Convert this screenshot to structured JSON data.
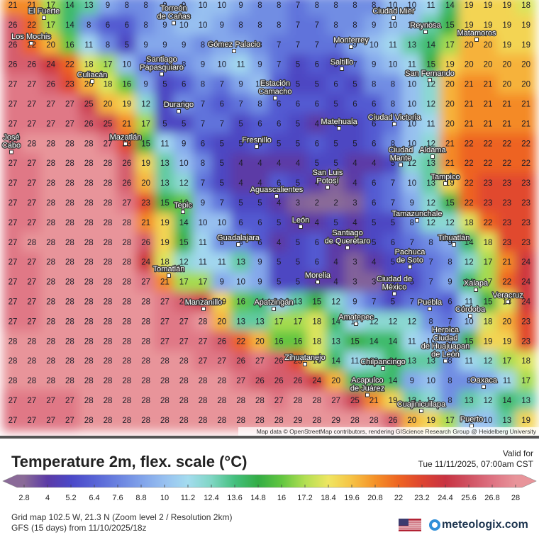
{
  "map": {
    "grid": {
      "rows": [
        [
          21,
          21,
          17,
          14,
          13,
          9,
          8,
          8,
          9,
          9,
          10,
          10,
          9,
          8,
          8,
          7,
          8,
          8,
          8,
          8,
          10,
          10,
          11,
          14,
          19,
          19,
          19,
          18
        ],
        [
          26,
          22,
          17,
          14,
          8,
          6,
          6,
          8,
          9,
          10,
          10,
          9,
          8,
          8,
          8,
          7,
          7,
          8,
          8,
          9,
          10,
          10,
          13,
          15,
          19,
          19,
          19,
          19
        ],
        [
          26,
          22,
          20,
          16,
          11,
          8,
          5,
          9,
          9,
          9,
          8,
          9,
          9,
          8,
          7,
          7,
          7,
          7,
          9,
          10,
          11,
          13,
          14,
          17,
          20,
          20,
          19,
          19
        ],
        [
          26,
          26,
          24,
          22,
          18,
          17,
          10,
          7,
          7,
          8,
          9,
          10,
          11,
          9,
          7,
          5,
          6,
          5,
          7,
          9,
          10,
          11,
          15,
          19,
          20,
          20,
          20,
          20
        ],
        [
          27,
          27,
          26,
          23,
          20,
          18,
          16,
          9,
          5,
          6,
          8,
          7,
          9,
          10,
          6,
          5,
          5,
          6,
          5,
          8,
          8,
          10,
          12,
          20,
          21,
          21,
          20,
          20
        ],
        [
          27,
          27,
          27,
          27,
          25,
          20,
          19,
          12,
          5,
          8,
          7,
          6,
          7,
          8,
          6,
          6,
          6,
          5,
          6,
          6,
          8,
          10,
          12,
          20,
          21,
          21,
          21,
          21
        ],
        [
          27,
          27,
          27,
          27,
          26,
          25,
          21,
          17,
          5,
          5,
          7,
          7,
          5,
          6,
          6,
          5,
          4,
          5,
          5,
          6,
          7,
          10,
          11,
          20,
          21,
          21,
          21,
          21
        ],
        [
          27,
          28,
          28,
          28,
          28,
          27,
          23,
          15,
          11,
          9,
          6,
          5,
          5,
          6,
          5,
          5,
          6,
          5,
          5,
          6,
          8,
          10,
          12,
          21,
          22,
          22,
          22,
          22
        ],
        [
          27,
          27,
          28,
          28,
          28,
          28,
          26,
          19,
          13,
          10,
          8,
          5,
          4,
          4,
          4,
          4,
          5,
          5,
          4,
          4,
          5,
          12,
          13,
          21,
          22,
          22,
          22,
          22
        ],
        [
          27,
          27,
          28,
          28,
          28,
          28,
          26,
          20,
          13,
          12,
          7,
          5,
          4,
          4,
          6,
          5,
          4,
          3,
          4,
          6,
          7,
          10,
          13,
          19,
          22,
          23,
          23,
          23
        ],
        [
          27,
          27,
          28,
          28,
          28,
          28,
          27,
          23,
          15,
          16,
          9,
          7,
          5,
          5,
          4,
          3,
          2,
          2,
          3,
          6,
          7,
          9,
          12,
          15,
          22,
          23,
          23,
          23
        ],
        [
          27,
          27,
          28,
          28,
          28,
          28,
          28,
          21,
          19,
          14,
          10,
          10,
          6,
          6,
          5,
          4,
          4,
          5,
          4,
          5,
          5,
          8,
          12,
          12,
          18,
          22,
          23,
          23
        ],
        [
          27,
          28,
          28,
          28,
          28,
          28,
          28,
          26,
          19,
          15,
          11,
          8,
          8,
          6,
          4,
          5,
          6,
          4,
          4,
          5,
          6,
          7,
          8,
          9,
          14,
          18,
          23,
          23
        ],
        [
          27,
          27,
          28,
          28,
          28,
          28,
          28,
          24,
          18,
          12,
          11,
          11,
          13,
          9,
          5,
          5,
          6,
          4,
          3,
          4,
          5,
          6,
          7,
          8,
          12,
          17,
          21,
          24
        ],
        [
          27,
          27,
          28,
          28,
          28,
          28,
          28,
          27,
          21,
          17,
          17,
          9,
          10,
          9,
          5,
          5,
          4,
          4,
          3,
          3,
          5,
          5,
          7,
          9,
          14,
          17,
          22,
          24
        ],
        [
          27,
          27,
          28,
          28,
          28,
          28,
          28,
          28,
          27,
          26,
          25,
          19,
          16,
          14,
          10,
          13,
          15,
          12,
          9,
          7,
          5,
          7,
          7,
          6,
          11,
          15,
          18,
          24
        ],
        [
          27,
          27,
          28,
          28,
          28,
          28,
          28,
          28,
          27,
          27,
          28,
          20,
          13,
          13,
          17,
          17,
          18,
          14,
          11,
          12,
          12,
          12,
          8,
          7,
          10,
          18,
          20,
          23
        ],
        [
          28,
          28,
          28,
          28,
          28,
          28,
          28,
          28,
          27,
          27,
          27,
          26,
          22,
          20,
          16,
          16,
          18,
          13,
          15,
          14,
          14,
          11,
          10,
          9,
          15,
          19,
          19,
          23
        ],
        [
          28,
          28,
          28,
          28,
          28,
          28,
          28,
          28,
          28,
          28,
          27,
          27,
          26,
          27,
          26,
          23,
          18,
          14,
          11,
          12,
          14,
          13,
          13,
          8,
          11,
          12,
          17,
          18
        ],
        [
          28,
          28,
          28,
          28,
          28,
          28,
          28,
          28,
          28,
          28,
          28,
          28,
          27,
          26,
          26,
          26,
          24,
          20,
          14,
          14,
          14,
          9,
          10,
          8,
          8,
          9,
          11,
          17
        ],
        [
          27,
          27,
          27,
          27,
          28,
          28,
          28,
          28,
          28,
          28,
          28,
          28,
          28,
          28,
          27,
          28,
          28,
          27,
          25,
          21,
          19,
          13,
          12,
          8,
          13,
          12,
          14,
          13
        ],
        [
          27,
          27,
          27,
          27,
          28,
          28,
          28,
          28,
          28,
          28,
          28,
          28,
          28,
          28,
          28,
          29,
          28,
          29,
          28,
          28,
          26,
          20,
          19,
          17,
          10,
          10,
          13,
          19
        ]
      ]
    },
    "cities": [
      {
        "lines": [
          "El Fuerte"
        ]
      },
      {
        "lines": [
          "Torreón",
          "de Cañas"
        ]
      },
      {
        "lines": [
          "Ciudad Mier"
        ]
      },
      {
        "lines": [
          "Reynosa"
        ]
      },
      {
        "lines": [
          "Matamoros"
        ]
      },
      {
        "lines": [
          "Los Mochis"
        ]
      },
      {
        "lines": [
          "Gómez Palacio"
        ]
      },
      {
        "lines": [
          "Monterrey"
        ]
      },
      {
        "lines": [
          "Santiago",
          "Papasquiaro"
        ]
      },
      {
        "lines": [
          "Saltillo"
        ]
      },
      {
        "lines": [
          "Culiacán"
        ]
      },
      {
        "lines": [
          "Estación",
          "Camacho"
        ]
      },
      {
        "lines": [
          "San Fernando"
        ]
      },
      {
        "lines": [
          "Durango"
        ]
      },
      {
        "lines": [
          "Ciudad Victoria"
        ]
      },
      {
        "lines": [
          "Matehuala"
        ]
      },
      {
        "lines": [
          "José",
          "Cabo"
        ]
      },
      {
        "lines": [
          "Mazatlán"
        ]
      },
      {
        "lines": [
          "Fresnillo"
        ]
      },
      {
        "lines": [
          "Ciudad",
          "Mante"
        ]
      },
      {
        "lines": [
          "Aldama"
        ]
      },
      {
        "lines": [
          "Tampico"
        ]
      },
      {
        "lines": [
          "San Luis",
          "Potosí"
        ]
      },
      {
        "lines": [
          "Aguascalientes"
        ]
      },
      {
        "lines": [
          "Tepic"
        ]
      },
      {
        "lines": [
          "Tamazunchale"
        ]
      },
      {
        "lines": [
          "León"
        ]
      },
      {
        "lines": [
          "Guadalajara"
        ]
      },
      {
        "lines": [
          "Santiago",
          "de Querétaro"
        ]
      },
      {
        "lines": [
          "Tihuatlán"
        ]
      },
      {
        "lines": [
          "Pachuca",
          "de Soto"
        ]
      },
      {
        "lines": [
          "Tomatlán"
        ]
      },
      {
        "lines": [
          "Morelia"
        ]
      },
      {
        "lines": [
          "Ciudad de",
          "México"
        ]
      },
      {
        "lines": [
          "Xalapa"
        ]
      },
      {
        "lines": [
          "Veracruz"
        ]
      },
      {
        "lines": [
          "Manzanillo"
        ]
      },
      {
        "lines": [
          "Apatzingán"
        ]
      },
      {
        "lines": [
          "Puebla"
        ]
      },
      {
        "lines": [
          "Córdoba"
        ]
      },
      {
        "lines": [
          "Amatepec"
        ]
      },
      {
        "lines": [
          "Heroica",
          "Ciudad",
          "de Huajuapan",
          "de León"
        ]
      },
      {
        "lines": [
          "Zihuatanejo"
        ]
      },
      {
        "lines": [
          "Chilpancingo"
        ]
      },
      {
        "lines": [
          "Acapulco",
          "de Juárez"
        ]
      },
      {
        "lines": [
          "Oaxaca"
        ]
      },
      {
        "lines": [
          "Cuajinicuilapa"
        ]
      },
      {
        "lines": [
          "Puerto"
        ]
      }
    ],
    "attribution": "Map data © OpenStreetMap contributors, rendering GIScience Research Group @ Heidelberg University"
  },
  "legend": {
    "title": "Temperature 2m, flex. scale (°C)",
    "valid_label": "Valid for",
    "valid_time": "Tue 11/11/2025, 07:00am CST",
    "ticks": [
      2.8,
      4,
      5.2,
      6.4,
      7.6,
      8.8,
      10,
      11.2,
      12.4,
      13.6,
      14.8,
      16,
      17.2,
      18.4,
      19.6,
      20.8,
      22,
      23.2,
      24.4,
      25.6,
      26.8,
      28
    ],
    "colors": [
      "#8a6a98",
      "#5b3aa6",
      "#4b48c8",
      "#5763d6",
      "#6a82e0",
      "#80a2ea",
      "#97c0f0",
      "#a4dcef",
      "#7fd6c4",
      "#44c07e",
      "#33ad45",
      "#62c640",
      "#b2df52",
      "#efe662",
      "#f6c244",
      "#f59128",
      "#ee6422",
      "#de4430",
      "#c83342",
      "#d05262",
      "#de7282",
      "#e8949a"
    ]
  },
  "footer": {
    "grid_info": "Grid map 102.5 W, 21.3 N (Zoom level 2 / Resolution 2km)",
    "model": "GFS (15 days) from 11/10/2025/18z",
    "brand": "meteologix.com"
  }
}
